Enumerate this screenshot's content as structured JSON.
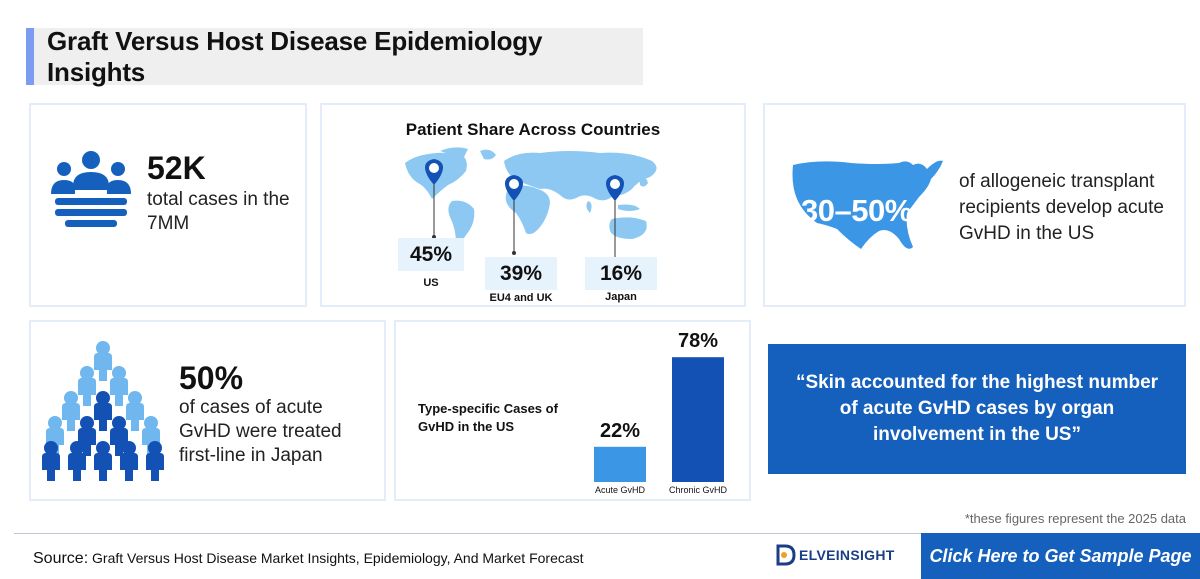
{
  "header": {
    "title": "Graft Versus Host Disease Epidemiology Insights"
  },
  "total_cases": {
    "value": "52K",
    "description": "total cases in the 7MM"
  },
  "patient_share": {
    "title": "Patient Share Across Countries",
    "regions": [
      {
        "value": "45%",
        "label": "US"
      },
      {
        "value": "39%",
        "label": "EU4 and UK"
      },
      {
        "value": "16%",
        "label": "Japan"
      }
    ]
  },
  "acute_us": {
    "value": "30–50%",
    "description": "of allogeneic transplant recipients develop acute GvHD in the US"
  },
  "first_line": {
    "value": "50%",
    "description": "of cases of acute GvHD were treated first-line in Japan"
  },
  "chart_data": {
    "type": "bar",
    "title": "Type-specific Cases of GvHD in the US",
    "categories": [
      "Acute GvHD",
      "Chronic GvHD"
    ],
    "values": [
      22,
      78
    ],
    "value_labels": [
      "22%",
      "78%"
    ],
    "colors": [
      "#3b96e6",
      "#1351b4"
    ]
  },
  "quote": {
    "text": "“Skin accounted for the highest number of acute GvHD cases by organ involvement in the US”"
  },
  "footnote": "*these figures represent the 2025 data",
  "source": {
    "label": "Source:",
    "text": "Graft Versus Host Disease Market Insights, Epidemiology, And Market Forecast"
  },
  "logo_text": "ELVEINSIGHT",
  "cta_label": "Click Here to Get Sample Page",
  "colors": {
    "accent": "#1560bd",
    "light_blue": "#6fb7ee",
    "dark_blue": "#1351b4"
  }
}
